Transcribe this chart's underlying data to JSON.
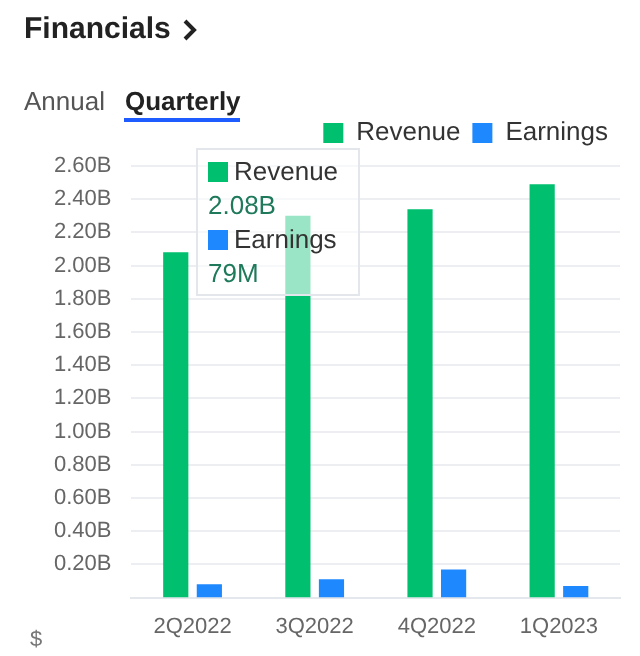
{
  "chart_data": {
    "type": "bar",
    "title": "Financials",
    "ylabel": "$",
    "categories": [
      "2Q2022",
      "3Q2022",
      "4Q2022",
      "1Q2023"
    ],
    "series": [
      {
        "name": "Revenue",
        "color": "#00bf6f",
        "values": [
          2.08,
          2.3,
          2.34,
          2.49
        ]
      },
      {
        "name": "Earnings",
        "color": "#1e88ff",
        "values": [
          0.08,
          0.11,
          0.17,
          0.07
        ]
      }
    ],
    "ylim": [
      0,
      2.6
    ],
    "yticks": [
      {
        "value": 0.2,
        "label": "0.20B"
      },
      {
        "value": 0.4,
        "label": "0.40B"
      },
      {
        "value": 0.6,
        "label": "0.60B"
      },
      {
        "value": 0.8,
        "label": "0.80B"
      },
      {
        "value": 1.0,
        "label": "1.00B"
      },
      {
        "value": 1.2,
        "label": "1.20B"
      },
      {
        "value": 1.4,
        "label": "1.40B"
      },
      {
        "value": 1.6,
        "label": "1.60B"
      },
      {
        "value": 1.8,
        "label": "1.80B"
      },
      {
        "value": 2.0,
        "label": "2.00B"
      },
      {
        "value": 2.2,
        "label": "2.20B"
      },
      {
        "value": 2.4,
        "label": "2.40B"
      },
      {
        "value": 2.6,
        "label": "2.60B"
      }
    ],
    "grid": "y",
    "legend": "top right",
    "annotations": [
      "Annual",
      "Quarterly",
      "Revenue",
      "2.08B",
      "Earnings",
      "79M"
    ]
  }
}
